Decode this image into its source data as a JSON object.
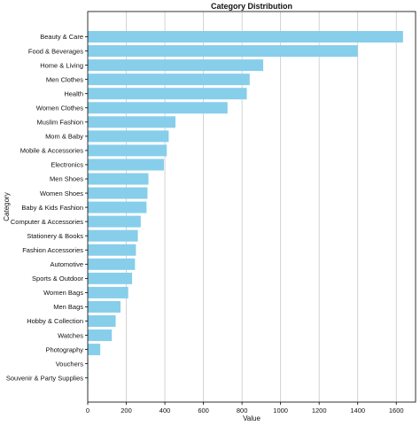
{
  "chart_data": {
    "type": "bar",
    "orientation": "horizontal",
    "title": "Category Distribution",
    "xlabel": "Value",
    "ylabel": "Category",
    "categories": [
      "Beauty & Care",
      "Food & Beverages",
      "Home & Living",
      "Men Clothes",
      "Health",
      "Women Clothes",
      "Muslim Fashion",
      "Mom & Baby",
      "Mobile & Accessories",
      "Electronics",
      "Men Shoes",
      "Women Shoes",
      "Baby & Kids Fashion",
      "Computer & Accessories",
      "Stationery & Books",
      "Fashion Accessories",
      "Automotive",
      "Sports & Outdoor",
      "Women Bags",
      "Men Bags",
      "Hobby & Collection",
      "Watches",
      "Photography",
      "Vouchers",
      "Souvenir & Party Supplies"
    ],
    "values": [
      1635,
      1400,
      910,
      840,
      825,
      725,
      455,
      420,
      410,
      395,
      315,
      310,
      305,
      275,
      260,
      250,
      245,
      230,
      210,
      170,
      145,
      125,
      65,
      3,
      2
    ],
    "xlim": [
      0,
      1700
    ],
    "xticks": [
      0,
      200,
      400,
      600,
      800,
      1000,
      1200,
      1400,
      1600
    ],
    "xtick_labels": [
      "0",
      "200",
      "400",
      "600",
      "800",
      "1000",
      "1200",
      "1400",
      "1600"
    ],
    "grid": "vertical",
    "bar_color": "#87ceeb",
    "grid_color": "#c8c8c8",
    "axis_color": "#000000"
  }
}
